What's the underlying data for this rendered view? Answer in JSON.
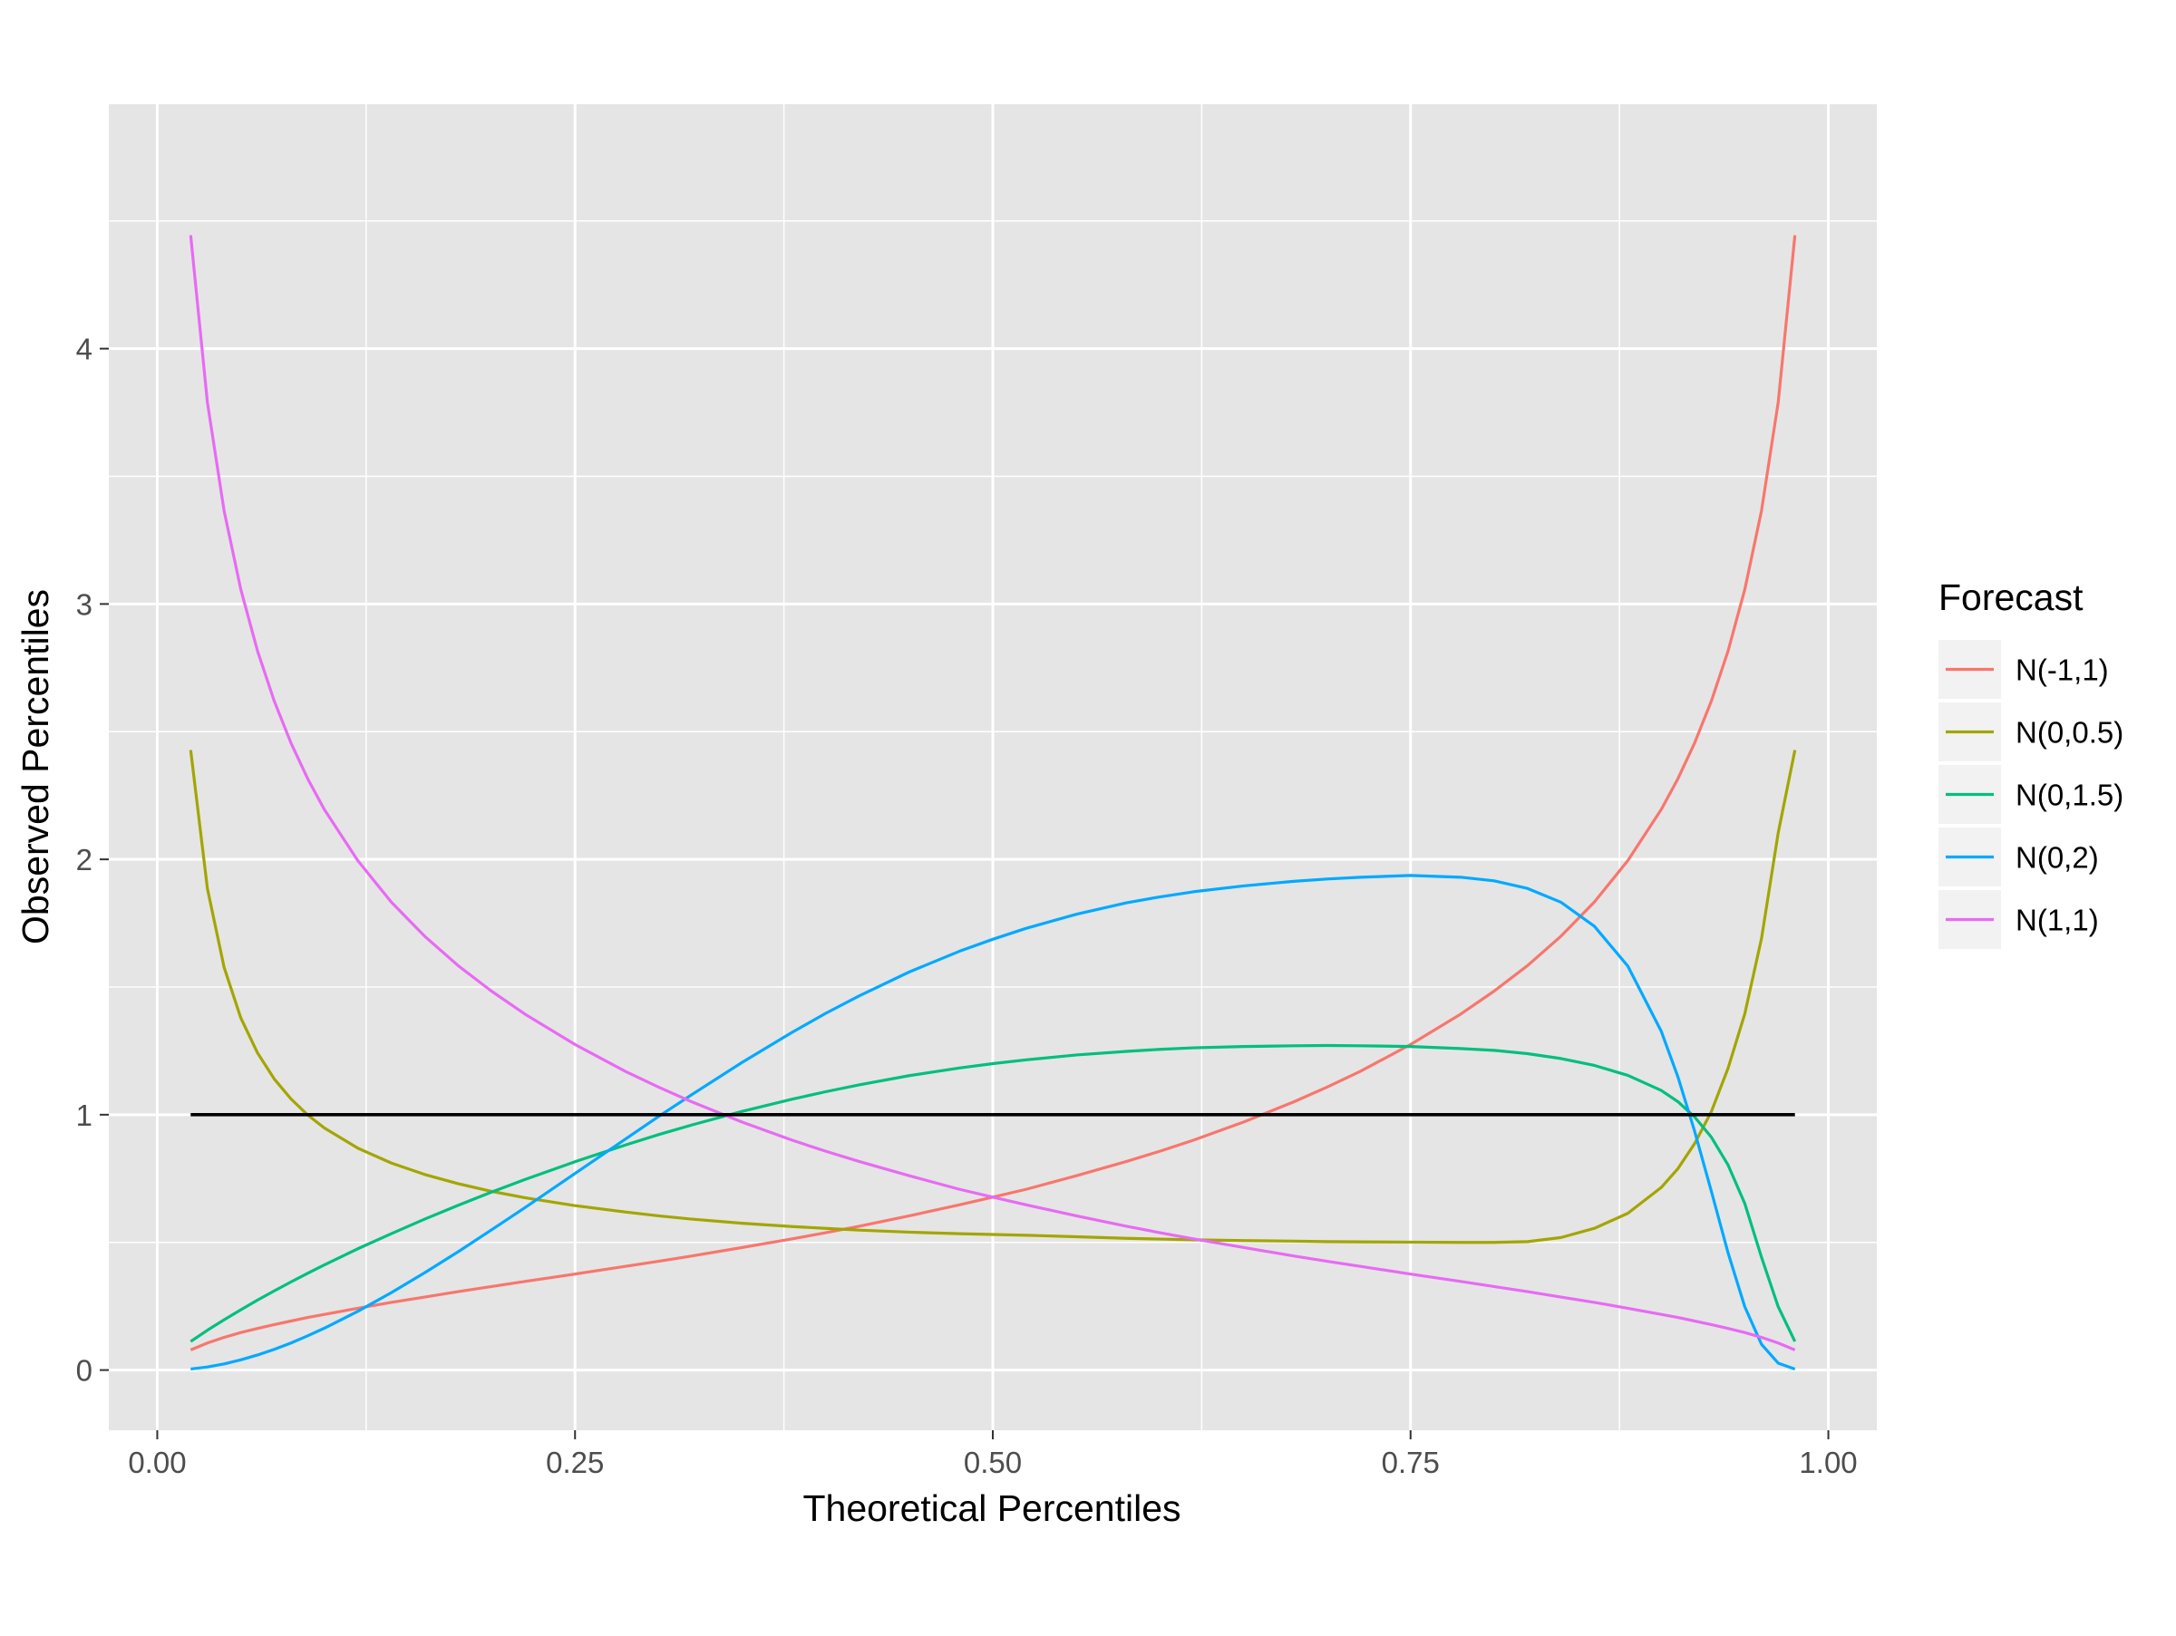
{
  "chart_data": {
    "type": "line",
    "title": "",
    "xlabel": "Theoretical Percentiles",
    "ylabel": "Observed Percentiles",
    "xlim": [
      -0.029,
      1.029
    ],
    "ylim": [
      -0.2357,
      4.9571
    ],
    "x_ticks": [
      0.0,
      0.25,
      0.5,
      0.75,
      1.0
    ],
    "x_tick_labels": [
      "0.00",
      "0.25",
      "0.50",
      "0.75",
      "1.00"
    ],
    "y_ticks": [
      0,
      1,
      2,
      3,
      4
    ],
    "y_tick_labels": [
      "0",
      "1",
      "2",
      "3",
      "4"
    ],
    "grid": true,
    "panel_background": "#e5e5e5",
    "legend": {
      "title": "Forecast",
      "position": "right"
    },
    "x": [
      0.02,
      0.03,
      0.04,
      0.05,
      0.06,
      0.07,
      0.08,
      0.09,
      0.1,
      0.12,
      0.14,
      0.16,
      0.18,
      0.2,
      0.22,
      0.25,
      0.28,
      0.3,
      0.32,
      0.35,
      0.38,
      0.4,
      0.42,
      0.45,
      0.48,
      0.5,
      0.52,
      0.55,
      0.58,
      0.6,
      0.62,
      0.65,
      0.68,
      0.7,
      0.72,
      0.75,
      0.78,
      0.8,
      0.82,
      0.84,
      0.86,
      0.88,
      0.9,
      0.91,
      0.92,
      0.93,
      0.94,
      0.95,
      0.96,
      0.97,
      0.98
    ],
    "series": [
      {
        "name": "N(-1,1)",
        "color": "#F8766D",
        "values": [
          0.079,
          0.106,
          0.128,
          0.147,
          0.163,
          0.178,
          0.192,
          0.206,
          0.218,
          0.242,
          0.265,
          0.286,
          0.307,
          0.327,
          0.347,
          0.376,
          0.406,
          0.426,
          0.447,
          0.48,
          0.514,
          0.538,
          0.563,
          0.604,
          0.647,
          0.677,
          0.708,
          0.761,
          0.817,
          0.857,
          0.9,
          0.971,
          1.05,
          1.108,
          1.17,
          1.275,
          1.394,
          1.484,
          1.584,
          1.699,
          1.833,
          1.995,
          2.195,
          2.316,
          2.456,
          2.62,
          2.816,
          3.057,
          3.365,
          3.79,
          4.444
        ]
      },
      {
        "name": "N(0,0.5)",
        "color": "#A3A500",
        "values": [
          2.428,
          1.886,
          1.577,
          1.379,
          1.242,
          1.14,
          1.062,
          0.999,
          0.948,
          0.869,
          0.811,
          0.766,
          0.73,
          0.7,
          0.675,
          0.644,
          0.619,
          0.604,
          0.591,
          0.575,
          0.562,
          0.555,
          0.548,
          0.54,
          0.534,
          0.531,
          0.528,
          0.522,
          0.516,
          0.513,
          0.51,
          0.507,
          0.505,
          0.503,
          0.502,
          0.501,
          0.5,
          0.5,
          0.503,
          0.519,
          0.555,
          0.614,
          0.715,
          0.789,
          0.887,
          1.012,
          1.182,
          1.395,
          1.69,
          2.104,
          2.428
        ]
      },
      {
        "name": "N(0,1.5)",
        "color": "#00BF7D",
        "values": [
          0.112,
          0.156,
          0.197,
          0.236,
          0.274,
          0.31,
          0.345,
          0.379,
          0.412,
          0.475,
          0.534,
          0.591,
          0.645,
          0.697,
          0.746,
          0.816,
          0.881,
          0.922,
          0.96,
          1.013,
          1.061,
          1.09,
          1.117,
          1.153,
          1.183,
          1.2,
          1.215,
          1.234,
          1.248,
          1.256,
          1.262,
          1.267,
          1.27,
          1.271,
          1.27,
          1.267,
          1.259,
          1.252,
          1.239,
          1.22,
          1.193,
          1.154,
          1.095,
          1.051,
          0.991,
          0.912,
          0.803,
          0.652,
          0.442,
          0.248,
          0.112
        ]
      },
      {
        "name": "N(0,2)",
        "color": "#00A9FF",
        "values": [
          0.004,
          0.012,
          0.024,
          0.04,
          0.059,
          0.081,
          0.106,
          0.134,
          0.164,
          0.23,
          0.303,
          0.381,
          0.463,
          0.549,
          0.636,
          0.77,
          0.904,
          0.993,
          1.079,
          1.205,
          1.323,
          1.397,
          1.465,
          1.559,
          1.64,
          1.687,
          1.73,
          1.785,
          1.83,
          1.853,
          1.873,
          1.896,
          1.914,
          1.923,
          1.93,
          1.937,
          1.93,
          1.916,
          1.886,
          1.832,
          1.738,
          1.582,
          1.327,
          1.148,
          0.935,
          0.7,
          0.459,
          0.248,
          0.101,
          0.027,
          0.004
        ]
      },
      {
        "name": "N(1,1)",
        "color": "#E76BF3",
        "values": [
          4.444,
          3.79,
          3.365,
          3.057,
          2.816,
          2.62,
          2.456,
          2.316,
          2.195,
          1.995,
          1.833,
          1.699,
          1.584,
          1.484,
          1.394,
          1.275,
          1.17,
          1.108,
          1.05,
          0.971,
          0.9,
          0.857,
          0.817,
          0.761,
          0.708,
          0.677,
          0.647,
          0.604,
          0.563,
          0.538,
          0.514,
          0.48,
          0.447,
          0.426,
          0.406,
          0.376,
          0.347,
          0.327,
          0.307,
          0.286,
          0.265,
          0.242,
          0.218,
          0.206,
          0.192,
          0.178,
          0.163,
          0.147,
          0.128,
          0.106,
          0.079
        ]
      }
    ],
    "reference_line": {
      "color": "#000000",
      "x": [
        0.02,
        0.98
      ],
      "values": [
        1,
        1
      ]
    }
  }
}
